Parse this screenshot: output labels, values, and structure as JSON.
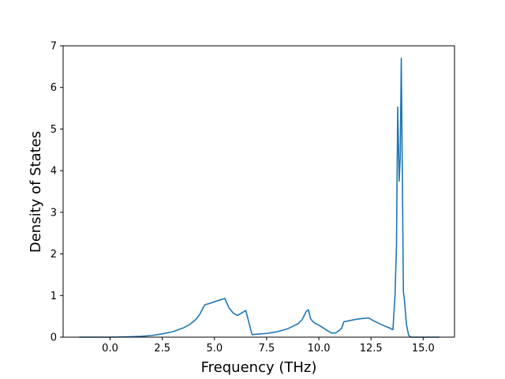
{
  "chart_data": {
    "type": "line",
    "title": "",
    "xlabel": "Frequency (THz)",
    "ylabel": "Density of States",
    "xlim": [
      -2.25,
      16.5
    ],
    "ylim": [
      0,
      7
    ],
    "xticks": [
      0.0,
      2.5,
      5.0,
      7.5,
      10.0,
      12.5,
      15.0
    ],
    "xtick_labels": [
      "0.0",
      "2.5",
      "5.0",
      "7.5",
      "10.0",
      "12.5",
      "15.0"
    ],
    "yticks": [
      0,
      1,
      2,
      3,
      4,
      5,
      6,
      7
    ],
    "ytick_labels": [
      "0",
      "1",
      "2",
      "3",
      "4",
      "5",
      "6",
      "7"
    ],
    "grid": false,
    "series": [
      {
        "color": "#1f77b4",
        "x": [
          -1.45,
          -0.5,
          0.0,
          0.5,
          1.0,
          1.5,
          2.0,
          2.5,
          3.0,
          3.5,
          3.8,
          4.1,
          4.3,
          4.45,
          4.55,
          4.7,
          5.0,
          5.3,
          5.5,
          5.7,
          5.9,
          6.1,
          6.3,
          6.5,
          6.6,
          6.8,
          7.0,
          7.5,
          8.0,
          8.5,
          9.0,
          9.2,
          9.4,
          9.5,
          9.6,
          9.7,
          9.8,
          10.1,
          10.4,
          10.6,
          10.8,
          10.95,
          11.1,
          11.2,
          11.5,
          11.8,
          12.1,
          12.4,
          12.6,
          13.0,
          13.3,
          13.55,
          13.65,
          13.72,
          13.78,
          13.85,
          13.9,
          13.95,
          14.0,
          14.05,
          14.1,
          14.2,
          14.3,
          14.4,
          14.6,
          15.0,
          15.5,
          15.75
        ],
        "y": [
          0.0,
          0.0,
          0.0,
          0.005,
          0.01,
          0.02,
          0.04,
          0.08,
          0.13,
          0.22,
          0.3,
          0.42,
          0.55,
          0.7,
          0.78,
          0.8,
          0.85,
          0.9,
          0.93,
          0.7,
          0.58,
          0.52,
          0.58,
          0.64,
          0.45,
          0.06,
          0.07,
          0.09,
          0.13,
          0.2,
          0.32,
          0.42,
          0.62,
          0.66,
          0.45,
          0.38,
          0.34,
          0.26,
          0.16,
          0.1,
          0.1,
          0.15,
          0.22,
          0.37,
          0.4,
          0.43,
          0.45,
          0.46,
          0.4,
          0.3,
          0.24,
          0.18,
          1.0,
          2.2,
          5.53,
          3.75,
          4.3,
          6.7,
          4.0,
          1.1,
          0.9,
          0.3,
          0.05,
          0.0,
          0.0,
          0.0,
          0.0,
          0.0
        ]
      }
    ]
  }
}
